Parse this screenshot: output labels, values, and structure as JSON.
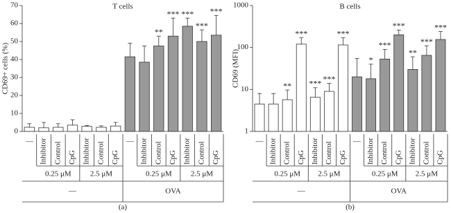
{
  "chart_data": [
    {
      "type": "bar",
      "title": "T cells",
      "ylabel": "CD69+ cells (%)",
      "caption": "(a)",
      "log": false,
      "ylim": [
        0,
        70
      ],
      "yticks": [
        0,
        10,
        20,
        30,
        40,
        50,
        60,
        70
      ],
      "groups": [
        {
          "label": "—",
          "color": "#ffffff",
          "categories": [
            "—",
            {
              "label": "0.25 μM",
              "items": [
                "Inhibitor",
                "Control",
                "CpG"
              ]
            },
            {
              "label": "2.5 μM",
              "items": [
                "Inhibitor",
                "Control",
                "CpG"
              ]
            }
          ],
          "values": [
            2.3,
            2.0,
            2.3,
            3.5,
            2.8,
            2.3,
            3.0
          ],
          "errors": [
            2.0,
            3.0,
            2.0,
            3.0,
            0.5,
            0.8,
            2.0
          ],
          "stars": [
            null,
            null,
            null,
            null,
            null,
            null,
            null
          ]
        },
        {
          "label": "OVA",
          "color": "#999999",
          "categories": [
            "—",
            {
              "label": "0.25 μM",
              "items": [
                "Inhibitor",
                "Control",
                "CpG"
              ]
            },
            {
              "label": "2.5 μM",
              "items": [
                "Inhibitor",
                "Control",
                "CpG"
              ]
            }
          ],
          "values": [
            41.5,
            38.5,
            47.5,
            53,
            58.5,
            50,
            53.5
          ],
          "errors": [
            7.5,
            9,
            5.5,
            10,
            4.5,
            6.5,
            11
          ],
          "stars": [
            null,
            null,
            "**",
            "***",
            "***",
            "***",
            "***"
          ]
        }
      ]
    },
    {
      "type": "bar",
      "title": "B cells",
      "ylabel": "CD69 (MFI)",
      "caption": "(b)",
      "log": true,
      "ylim": [
        1,
        1000
      ],
      "yticks": [
        1,
        10,
        100,
        1000
      ],
      "groups": [
        {
          "label": "—",
          "color": "#ffffff",
          "categories": [
            "—",
            {
              "label": "0.25 μM",
              "items": [
                "Inhibitor",
                "Control",
                "CpG"
              ]
            },
            {
              "label": "2.5 μM",
              "items": [
                "Inhibitor",
                "Control",
                "CpG"
              ]
            }
          ],
          "values": [
            4.5,
            4.5,
            5.7,
            120,
            6.5,
            9,
            115
          ],
          "errors": [
            3.5,
            3.5,
            4,
            50,
            4.5,
            5,
            55
          ],
          "stars": [
            null,
            null,
            "**",
            "***",
            "***",
            "***",
            "***"
          ]
        },
        {
          "label": "OVA",
          "color": "#999999",
          "categories": [
            "—",
            {
              "label": "0.25 μM",
              "items": [
                "Inhibitor",
                "Control",
                "CpG"
              ]
            },
            {
              "label": "2.5 μM",
              "items": [
                "Inhibitor",
                "Control",
                "CpG"
              ]
            }
          ],
          "values": [
            20,
            18,
            53,
            200,
            30,
            65,
            155
          ],
          "errors": [
            35,
            22,
            37,
            60,
            30,
            45,
            85
          ],
          "stars": [
            null,
            "*",
            "***",
            "***",
            "**",
            "***",
            "***"
          ]
        }
      ]
    }
  ]
}
